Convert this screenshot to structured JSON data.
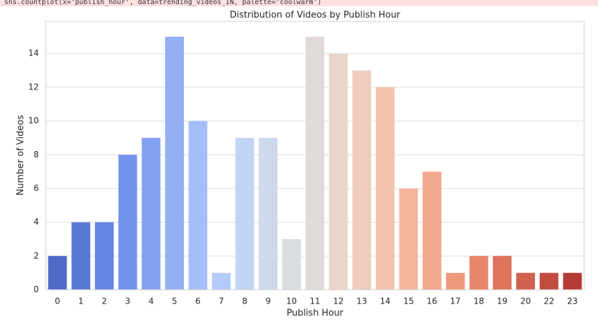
{
  "code": "sns.countplot(x='publish_hour', data=trending_videos_IN, palette='coolwarm')",
  "chart_data": {
    "type": "bar",
    "title": "Distribution of Videos by Publish Hour",
    "x_label": "Publish Hour",
    "y_label": "Number of Videos",
    "categories": [
      "0",
      "1",
      "2",
      "3",
      "4",
      "5",
      "6",
      "7",
      "8",
      "9",
      "10",
      "11",
      "12",
      "13",
      "14",
      "15",
      "16",
      "17",
      "18",
      "19",
      "20",
      "22",
      "23"
    ],
    "values": [
      2,
      4,
      4,
      8,
      9,
      15,
      10,
      1,
      9,
      9,
      3,
      15,
      14,
      13,
      12,
      6,
      7,
      1,
      2,
      2,
      1,
      1,
      1
    ],
    "colors": [
      "#4f69c6",
      "#5a78d8",
      "#6585e3",
      "#7393ec",
      "#83a1f0",
      "#93b0f5",
      "#a3bef9",
      "#b2cbfb",
      "#c0d4f5",
      "#cdd9ec",
      "#d9dce1",
      "#e0dbd8",
      "#e8d6cb",
      "#eecdbd",
      "#f2c2ad",
      "#f3b69d",
      "#f2a88c",
      "#ee987c",
      "#e6876b",
      "#dd745c",
      "#d1604e",
      "#c34c41",
      "#b43a36"
    ],
    "ylim": [
      0,
      15.9
    ],
    "yticks": [
      0,
      2,
      4,
      6,
      8,
      10,
      12,
      14
    ],
    "grid": true
  }
}
